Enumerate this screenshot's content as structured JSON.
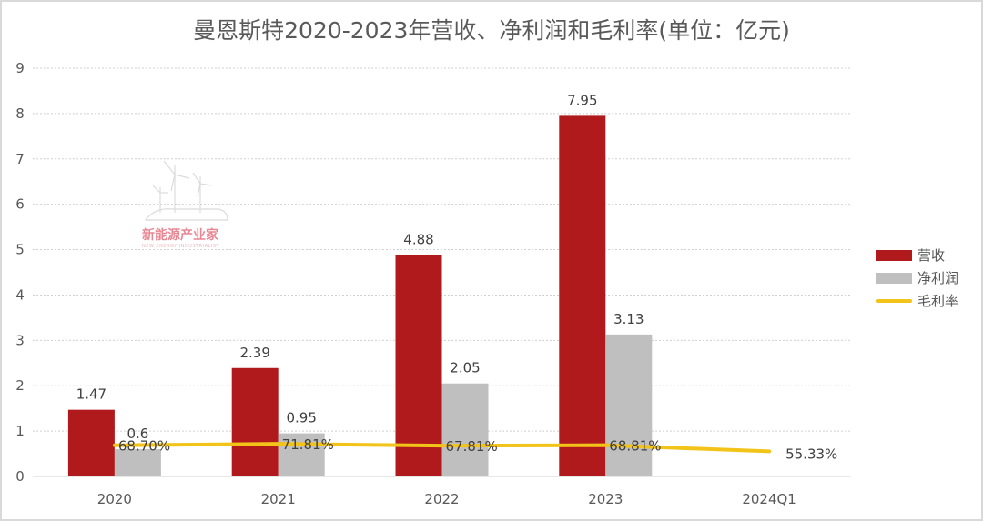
{
  "chart_data": {
    "type": "bar",
    "title": "曼恩斯特2020-2023年营收、净利润和毛利率(单位：亿元)",
    "xlabel": "",
    "ylabel": "",
    "ylim": [
      0,
      9
    ],
    "yticks": [
      "0",
      "1",
      "2",
      "3",
      "4",
      "5",
      "6",
      "7",
      "8",
      "9"
    ],
    "grid": true,
    "legend_position": "right",
    "categories": [
      "2020",
      "2021",
      "2022",
      "2023",
      "2024Q1"
    ],
    "series": [
      {
        "name": "营收",
        "kind": "bar",
        "color": "#b01a1d",
        "values": [
          1.47,
          2.39,
          4.88,
          7.95,
          null
        ],
        "labels": [
          "1.47",
          "2.39",
          "4.88",
          "7.95",
          ""
        ]
      },
      {
        "name": "净利润",
        "kind": "bar",
        "color": "#bfbfbf",
        "values": [
          0.6,
          0.95,
          2.05,
          3.13,
          null
        ],
        "labels": [
          "0.6",
          "0.95",
          "2.05",
          "3.13",
          ""
        ]
      },
      {
        "name": "毛利率",
        "kind": "line",
        "color": "#f2c319",
        "values": [
          68.7,
          71.81,
          67.81,
          68.81,
          55.33
        ],
        "labels": [
          "68.70%",
          "71.81%",
          "67.81%",
          "68.81%",
          "55.33%"
        ]
      }
    ]
  },
  "watermark": {
    "text": "新能源产业家",
    "subtext": "NEW ENERGY INDUSTRIALIST"
  }
}
